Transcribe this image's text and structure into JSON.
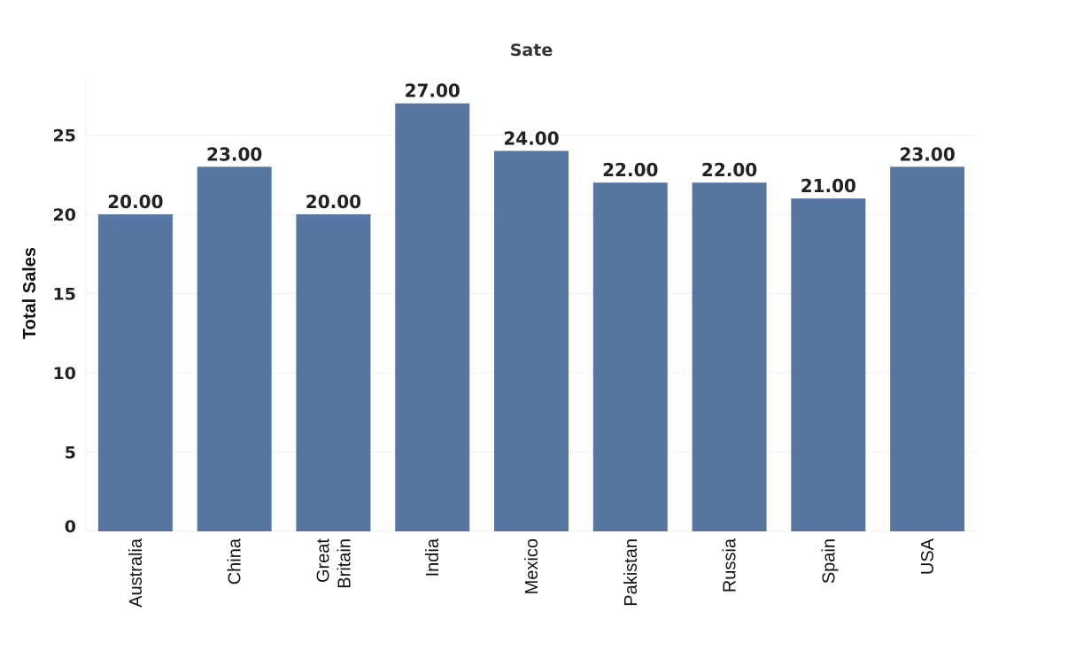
{
  "chart_data": {
    "type": "bar",
    "title": "Sate",
    "xlabel": "",
    "ylabel": "Total Sales",
    "categories": [
      "Australia",
      "China",
      "Great Britain",
      "India",
      "Mexico",
      "Pakistan",
      "Russia",
      "Spain",
      "USA"
    ],
    "category_lines": [
      [
        "Australia"
      ],
      [
        "China"
      ],
      [
        "Great",
        "Britain"
      ],
      [
        "India"
      ],
      [
        "Mexico"
      ],
      [
        "Pakistan"
      ],
      [
        "Russia"
      ],
      [
        "Spain"
      ],
      [
        "USA"
      ]
    ],
    "values": [
      20,
      23,
      20,
      27,
      24,
      22,
      22,
      21,
      23
    ],
    "data_labels": [
      "20.00",
      "23.00",
      "20.00",
      "27.00",
      "24.00",
      "22.00",
      "22.00",
      "21.00",
      "23.00"
    ],
    "yticks": [
      0,
      5,
      10,
      15,
      20,
      25
    ],
    "ylim": [
      0,
      28.5
    ],
    "grid": true,
    "legend": "none",
    "bar_color": "#5776a2"
  }
}
